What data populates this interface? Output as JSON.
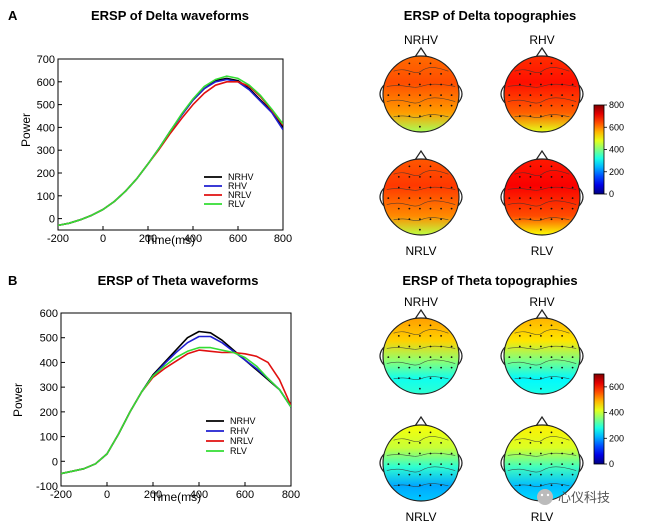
{
  "panels": [
    {
      "letter": "A"
    },
    {
      "letter": "B"
    }
  ],
  "chart_data": [
    {
      "type": "line",
      "title": "ERSP of Delta waveforms",
      "xlabel": "Time(ms)",
      "ylabel": "Power",
      "xlim": [
        -200,
        800
      ],
      "ylim": [
        -50,
        700
      ],
      "xticks": [
        -200,
        0,
        200,
        400,
        600,
        800
      ],
      "yticks": [
        0,
        100,
        200,
        300,
        400,
        500,
        600,
        700
      ],
      "legend_position": "lower-right",
      "x": [
        -200,
        -150,
        -100,
        -50,
        0,
        50,
        100,
        150,
        200,
        250,
        300,
        350,
        400,
        450,
        500,
        550,
        600,
        650,
        700,
        750,
        800
      ],
      "series": [
        {
          "name": "NRHV",
          "color": "#000000",
          "values": [
            -30,
            -20,
            -5,
            15,
            40,
            75,
            120,
            175,
            240,
            310,
            385,
            455,
            520,
            570,
            605,
            615,
            605,
            570,
            520,
            470,
            400
          ]
        },
        {
          "name": "RHV",
          "color": "#1f1fd0",
          "values": [
            -30,
            -20,
            -5,
            15,
            40,
            75,
            120,
            175,
            240,
            310,
            385,
            455,
            520,
            570,
            600,
            610,
            600,
            565,
            515,
            465,
            390
          ]
        },
        {
          "name": "NRLV",
          "color": "#e01010",
          "values": [
            -30,
            -20,
            -5,
            15,
            40,
            75,
            120,
            175,
            240,
            305,
            375,
            440,
            500,
            550,
            585,
            600,
            600,
            580,
            535,
            475,
            410
          ]
        },
        {
          "name": "RLV",
          "color": "#33dd33",
          "values": [
            -30,
            -20,
            -5,
            15,
            40,
            75,
            120,
            175,
            240,
            310,
            385,
            460,
            525,
            580,
            610,
            625,
            615,
            585,
            540,
            480,
            415
          ]
        }
      ]
    },
    {
      "type": "line",
      "title": "ERSP of Theta waveforms",
      "xlabel": "Time(ms)",
      "ylabel": "Power",
      "xlim": [
        -200,
        800
      ],
      "ylim": [
        -100,
        600
      ],
      "xticks": [
        -200,
        0,
        200,
        400,
        600,
        800
      ],
      "yticks": [
        -100,
        0,
        100,
        200,
        300,
        400,
        500,
        600
      ],
      "legend_position": "lower-right",
      "x": [
        -200,
        -150,
        -100,
        -50,
        0,
        50,
        100,
        150,
        200,
        250,
        300,
        350,
        400,
        450,
        500,
        550,
        600,
        650,
        700,
        750,
        800
      ],
      "series": [
        {
          "name": "NRHV",
          "color": "#000000",
          "values": [
            -50,
            -40,
            -30,
            -10,
            30,
            110,
            200,
            280,
            350,
            400,
            450,
            500,
            525,
            520,
            490,
            450,
            410,
            370,
            330,
            290,
            220
          ]
        },
        {
          "name": "RHV",
          "color": "#1f1fd0",
          "values": [
            -50,
            -40,
            -30,
            -10,
            30,
            110,
            200,
            280,
            345,
            395,
            440,
            480,
            505,
            505,
            480,
            445,
            410,
            375,
            335,
            290,
            220
          ]
        },
        {
          "name": "NRLV",
          "color": "#e01010",
          "values": [
            -50,
            -40,
            -30,
            -10,
            30,
            110,
            200,
            280,
            340,
            375,
            405,
            435,
            450,
            445,
            440,
            440,
            435,
            425,
            400,
            330,
            225
          ]
        },
        {
          "name": "RLV",
          "color": "#33dd33",
          "values": [
            -50,
            -40,
            -30,
            -10,
            30,
            110,
            200,
            280,
            345,
            385,
            420,
            445,
            460,
            460,
            450,
            440,
            420,
            385,
            335,
            290,
            220
          ]
        }
      ]
    },
    {
      "type": "heatmap",
      "title": "ERSP of Delta topographies",
      "colorbar": {
        "min": 0,
        "max": 800,
        "ticks": [
          0,
          200,
          400,
          600,
          800
        ]
      },
      "maps": [
        {
          "label": "NRHV",
          "level": 0.72,
          "label_pos": "top"
        },
        {
          "label": "RHV",
          "level": 0.78,
          "label_pos": "top"
        },
        {
          "label": "NRLV",
          "level": 0.74,
          "label_pos": "bottom"
        },
        {
          "label": "RLV",
          "level": 0.8,
          "label_pos": "bottom"
        }
      ]
    },
    {
      "type": "heatmap",
      "title": "ERSP of Theta topographies",
      "colorbar": {
        "min": 0,
        "max": 700,
        "ticks": [
          0,
          200,
          400,
          600
        ]
      },
      "maps": [
        {
          "label": "NRHV",
          "level": 0.72,
          "label_pos": "top"
        },
        {
          "label": "RHV",
          "level": 0.7,
          "label_pos": "top"
        },
        {
          "label": "NRLV",
          "level": 0.62,
          "label_pos": "bottom"
        },
        {
          "label": "RLV",
          "level": 0.64,
          "label_pos": "bottom"
        }
      ]
    }
  ],
  "watermark": {
    "text": "心仪科技",
    "icon": "wechat-icon"
  }
}
